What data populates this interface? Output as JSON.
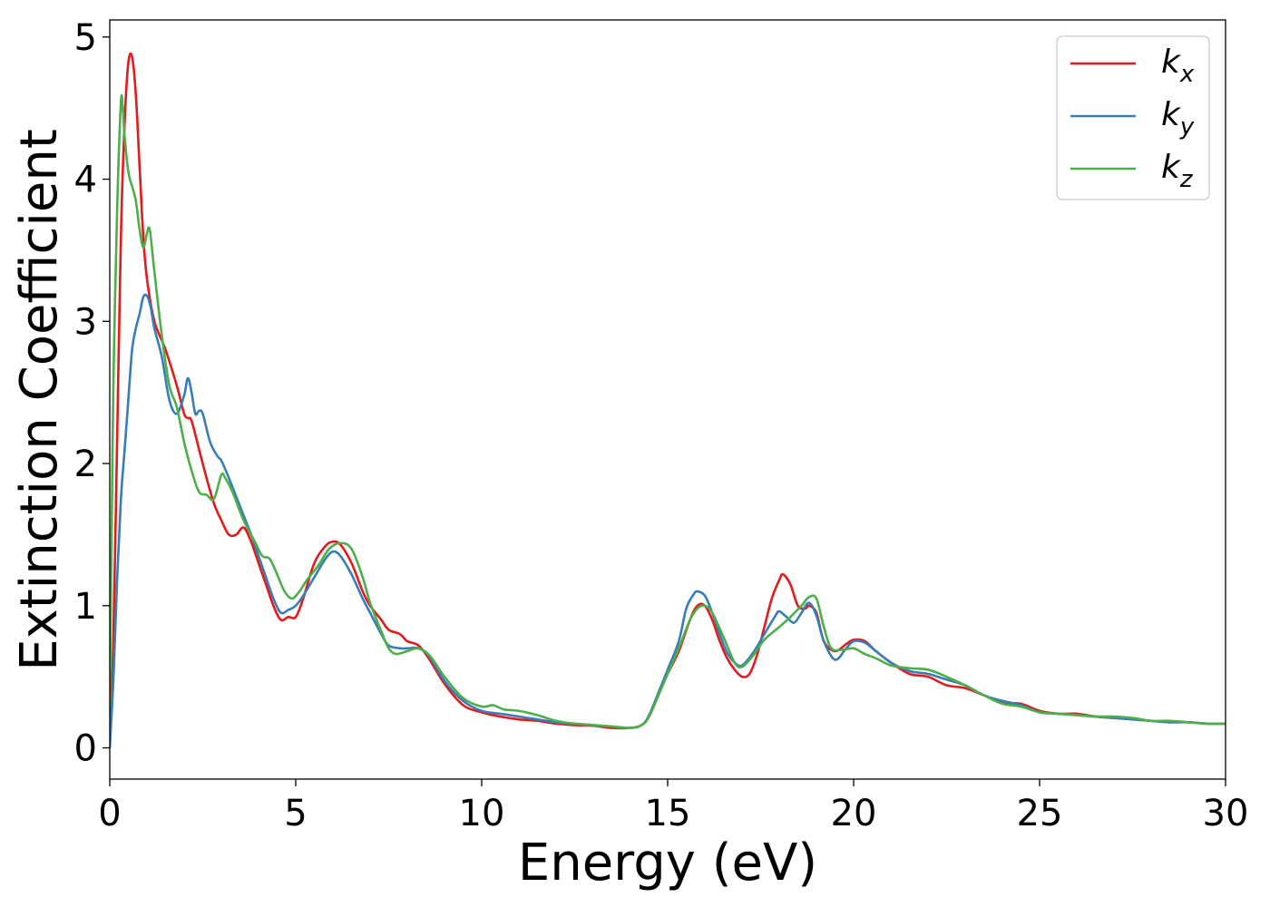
{
  "chart_data": {
    "type": "line",
    "title": "",
    "xlabel": "Energy (eV)",
    "ylabel": "Extinction Coefficient",
    "xlim": [
      0,
      30
    ],
    "ylim": [
      -0.22,
      5.12
    ],
    "xticks": [
      0,
      5,
      10,
      15,
      20,
      25,
      30
    ],
    "yticks": [
      0,
      1,
      2,
      3,
      4,
      5
    ],
    "grid": false,
    "legend_position": "top-right",
    "series": [
      {
        "name": "k",
        "sub": "x",
        "color": "#e41a1c",
        "points": [
          [
            0,
            0.0
          ],
          [
            0.1,
            0.8
          ],
          [
            0.2,
            2.2
          ],
          [
            0.3,
            3.6
          ],
          [
            0.4,
            4.4
          ],
          [
            0.5,
            4.82
          ],
          [
            0.6,
            4.86
          ],
          [
            0.7,
            4.6
          ],
          [
            0.8,
            4.1
          ],
          [
            0.9,
            3.6
          ],
          [
            1.0,
            3.3
          ],
          [
            1.2,
            3.0
          ],
          [
            1.5,
            2.8
          ],
          [
            1.8,
            2.55
          ],
          [
            2.0,
            2.35
          ],
          [
            2.1,
            2.32
          ],
          [
            2.2,
            2.3
          ],
          [
            2.4,
            2.1
          ],
          [
            2.6,
            1.9
          ],
          [
            2.8,
            1.72
          ],
          [
            3.0,
            1.6
          ],
          [
            3.2,
            1.5
          ],
          [
            3.4,
            1.5
          ],
          [
            3.6,
            1.55
          ],
          [
            3.8,
            1.45
          ],
          [
            4.0,
            1.3
          ],
          [
            4.2,
            1.15
          ],
          [
            4.4,
            1.0
          ],
          [
            4.6,
            0.9
          ],
          [
            4.8,
            0.92
          ],
          [
            5.0,
            0.92
          ],
          [
            5.2,
            1.05
          ],
          [
            5.5,
            1.3
          ],
          [
            5.8,
            1.42
          ],
          [
            6.0,
            1.45
          ],
          [
            6.2,
            1.43
          ],
          [
            6.5,
            1.3
          ],
          [
            6.8,
            1.1
          ],
          [
            7.0,
            1.0
          ],
          [
            7.3,
            0.9
          ],
          [
            7.5,
            0.83
          ],
          [
            7.8,
            0.8
          ],
          [
            8.0,
            0.75
          ],
          [
            8.3,
            0.72
          ],
          [
            8.6,
            0.62
          ],
          [
            9.0,
            0.45
          ],
          [
            9.5,
            0.3
          ],
          [
            10.0,
            0.25
          ],
          [
            10.5,
            0.22
          ],
          [
            11.0,
            0.2
          ],
          [
            11.5,
            0.19
          ],
          [
            12.0,
            0.17
          ],
          [
            12.5,
            0.16
          ],
          [
            13.0,
            0.155
          ],
          [
            13.5,
            0.14
          ],
          [
            14.0,
            0.14
          ],
          [
            14.3,
            0.16
          ],
          [
            14.5,
            0.22
          ],
          [
            14.8,
            0.4
          ],
          [
            15.0,
            0.52
          ],
          [
            15.3,
            0.68
          ],
          [
            15.6,
            0.9
          ],
          [
            15.8,
            1.0
          ],
          [
            16.0,
            1.0
          ],
          [
            16.2,
            0.9
          ],
          [
            16.4,
            0.75
          ],
          [
            16.6,
            0.63
          ],
          [
            16.8,
            0.55
          ],
          [
            17.0,
            0.5
          ],
          [
            17.2,
            0.52
          ],
          [
            17.4,
            0.65
          ],
          [
            17.6,
            0.85
          ],
          [
            17.8,
            1.05
          ],
          [
            18.0,
            1.18
          ],
          [
            18.1,
            1.22
          ],
          [
            18.3,
            1.15
          ],
          [
            18.5,
            1.0
          ],
          [
            18.7,
            0.98
          ],
          [
            18.8,
            1.0
          ],
          [
            19.0,
            0.95
          ],
          [
            19.2,
            0.75
          ],
          [
            19.5,
            0.68
          ],
          [
            19.8,
            0.73
          ],
          [
            20.0,
            0.76
          ],
          [
            20.3,
            0.75
          ],
          [
            20.6,
            0.68
          ],
          [
            21.0,
            0.6
          ],
          [
            21.5,
            0.52
          ],
          [
            22.0,
            0.5
          ],
          [
            22.5,
            0.44
          ],
          [
            23.0,
            0.42
          ],
          [
            23.5,
            0.37
          ],
          [
            24.0,
            0.32
          ],
          [
            24.5,
            0.31
          ],
          [
            25.0,
            0.26
          ],
          [
            25.5,
            0.24
          ],
          [
            26.0,
            0.24
          ],
          [
            26.5,
            0.22
          ],
          [
            27.0,
            0.21
          ],
          [
            27.5,
            0.2
          ],
          [
            28.0,
            0.19
          ],
          [
            28.5,
            0.18
          ],
          [
            29.0,
            0.18
          ],
          [
            29.5,
            0.17
          ],
          [
            30.0,
            0.17
          ]
        ]
      },
      {
        "name": "k",
        "sub": "y",
        "color": "#377eb8",
        "points": [
          [
            0,
            0.0
          ],
          [
            0.1,
            0.5
          ],
          [
            0.2,
            1.2
          ],
          [
            0.3,
            1.75
          ],
          [
            0.4,
            2.1
          ],
          [
            0.5,
            2.45
          ],
          [
            0.6,
            2.8
          ],
          [
            0.7,
            2.95
          ],
          [
            0.8,
            3.05
          ],
          [
            0.9,
            3.17
          ],
          [
            1.0,
            3.18
          ],
          [
            1.1,
            3.1
          ],
          [
            1.2,
            2.95
          ],
          [
            1.4,
            2.75
          ],
          [
            1.6,
            2.45
          ],
          [
            1.8,
            2.35
          ],
          [
            2.0,
            2.48
          ],
          [
            2.1,
            2.6
          ],
          [
            2.2,
            2.5
          ],
          [
            2.3,
            2.35
          ],
          [
            2.4,
            2.37
          ],
          [
            2.5,
            2.35
          ],
          [
            2.7,
            2.15
          ],
          [
            2.9,
            2.05
          ],
          [
            3.0,
            2.02
          ],
          [
            3.2,
            1.9
          ],
          [
            3.5,
            1.7
          ],
          [
            3.8,
            1.5
          ],
          [
            4.0,
            1.35
          ],
          [
            4.2,
            1.2
          ],
          [
            4.4,
            1.05
          ],
          [
            4.6,
            0.95
          ],
          [
            4.8,
            0.97
          ],
          [
            5.0,
            1.0
          ],
          [
            5.2,
            1.07
          ],
          [
            5.5,
            1.2
          ],
          [
            5.8,
            1.33
          ],
          [
            6.0,
            1.38
          ],
          [
            6.2,
            1.35
          ],
          [
            6.5,
            1.22
          ],
          [
            6.8,
            1.05
          ],
          [
            7.0,
            0.95
          ],
          [
            7.3,
            0.8
          ],
          [
            7.5,
            0.72
          ],
          [
            7.8,
            0.7
          ],
          [
            8.0,
            0.7
          ],
          [
            8.3,
            0.7
          ],
          [
            8.6,
            0.64
          ],
          [
            9.0,
            0.47
          ],
          [
            9.5,
            0.33
          ],
          [
            10.0,
            0.26
          ],
          [
            10.5,
            0.24
          ],
          [
            11.0,
            0.22
          ],
          [
            11.5,
            0.2
          ],
          [
            12.0,
            0.18
          ],
          [
            12.5,
            0.17
          ],
          [
            13.0,
            0.16
          ],
          [
            13.5,
            0.15
          ],
          [
            14.0,
            0.14
          ],
          [
            14.3,
            0.16
          ],
          [
            14.5,
            0.23
          ],
          [
            14.8,
            0.42
          ],
          [
            15.0,
            0.55
          ],
          [
            15.3,
            0.75
          ],
          [
            15.5,
            0.98
          ],
          [
            15.7,
            1.08
          ],
          [
            15.8,
            1.1
          ],
          [
            16.0,
            1.07
          ],
          [
            16.2,
            0.95
          ],
          [
            16.4,
            0.8
          ],
          [
            16.6,
            0.67
          ],
          [
            16.8,
            0.6
          ],
          [
            17.0,
            0.58
          ],
          [
            17.3,
            0.67
          ],
          [
            17.6,
            0.8
          ],
          [
            17.9,
            0.93
          ],
          [
            18.0,
            0.96
          ],
          [
            18.2,
            0.92
          ],
          [
            18.4,
            0.88
          ],
          [
            18.6,
            0.95
          ],
          [
            18.8,
            1.02
          ],
          [
            19.0,
            0.93
          ],
          [
            19.2,
            0.75
          ],
          [
            19.5,
            0.62
          ],
          [
            19.8,
            0.7
          ],
          [
            20.0,
            0.75
          ],
          [
            20.3,
            0.74
          ],
          [
            20.6,
            0.68
          ],
          [
            21.0,
            0.6
          ],
          [
            21.5,
            0.54
          ],
          [
            22.0,
            0.52
          ],
          [
            22.5,
            0.48
          ],
          [
            23.0,
            0.44
          ],
          [
            23.5,
            0.37
          ],
          [
            24.0,
            0.33
          ],
          [
            24.5,
            0.3
          ],
          [
            25.0,
            0.25
          ],
          [
            25.5,
            0.24
          ],
          [
            26.0,
            0.23
          ],
          [
            26.5,
            0.22
          ],
          [
            27.0,
            0.21
          ],
          [
            27.5,
            0.2
          ],
          [
            28.0,
            0.19
          ],
          [
            28.5,
            0.18
          ],
          [
            29.0,
            0.18
          ],
          [
            29.5,
            0.17
          ],
          [
            30.0,
            0.17
          ]
        ]
      },
      {
        "name": "k",
        "sub": "z",
        "color": "#4daf4a",
        "points": [
          [
            0,
            0.3
          ],
          [
            0.05,
            1.5
          ],
          [
            0.1,
            2.6
          ],
          [
            0.2,
            3.8
          ],
          [
            0.3,
            4.54
          ],
          [
            0.35,
            4.5
          ],
          [
            0.4,
            4.3
          ],
          [
            0.5,
            4.05
          ],
          [
            0.6,
            3.95
          ],
          [
            0.7,
            3.85
          ],
          [
            0.8,
            3.65
          ],
          [
            0.9,
            3.52
          ],
          [
            1.0,
            3.62
          ],
          [
            1.05,
            3.66
          ],
          [
            1.1,
            3.6
          ],
          [
            1.2,
            3.35
          ],
          [
            1.4,
            2.9
          ],
          [
            1.6,
            2.55
          ],
          [
            1.8,
            2.4
          ],
          [
            2.0,
            2.15
          ],
          [
            2.2,
            1.95
          ],
          [
            2.4,
            1.8
          ],
          [
            2.6,
            1.78
          ],
          [
            2.8,
            1.75
          ],
          [
            3.0,
            1.92
          ],
          [
            3.1,
            1.9
          ],
          [
            3.3,
            1.8
          ],
          [
            3.6,
            1.6
          ],
          [
            3.9,
            1.45
          ],
          [
            4.1,
            1.35
          ],
          [
            4.3,
            1.33
          ],
          [
            4.5,
            1.22
          ],
          [
            4.7,
            1.1
          ],
          [
            4.9,
            1.05
          ],
          [
            5.1,
            1.1
          ],
          [
            5.3,
            1.18
          ],
          [
            5.6,
            1.28
          ],
          [
            5.9,
            1.4
          ],
          [
            6.2,
            1.44
          ],
          [
            6.5,
            1.4
          ],
          [
            6.8,
            1.2
          ],
          [
            7.0,
            1.02
          ],
          [
            7.3,
            0.82
          ],
          [
            7.5,
            0.7
          ],
          [
            7.7,
            0.66
          ],
          [
            8.0,
            0.68
          ],
          [
            8.3,
            0.7
          ],
          [
            8.6,
            0.65
          ],
          [
            9.0,
            0.5
          ],
          [
            9.5,
            0.35
          ],
          [
            10.0,
            0.29
          ],
          [
            10.3,
            0.3
          ],
          [
            10.6,
            0.27
          ],
          [
            11.0,
            0.26
          ],
          [
            11.5,
            0.23
          ],
          [
            12.0,
            0.19
          ],
          [
            12.5,
            0.17
          ],
          [
            13.0,
            0.16
          ],
          [
            13.5,
            0.15
          ],
          [
            14.0,
            0.14
          ],
          [
            14.3,
            0.16
          ],
          [
            14.5,
            0.22
          ],
          [
            14.8,
            0.4
          ],
          [
            15.0,
            0.52
          ],
          [
            15.3,
            0.7
          ],
          [
            15.6,
            0.9
          ],
          [
            15.8,
            0.98
          ],
          [
            16.0,
            1.0
          ],
          [
            16.2,
            0.95
          ],
          [
            16.5,
            0.78
          ],
          [
            16.8,
            0.6
          ],
          [
            17.0,
            0.57
          ],
          [
            17.3,
            0.65
          ],
          [
            17.6,
            0.76
          ],
          [
            18.0,
            0.85
          ],
          [
            18.3,
            0.92
          ],
          [
            18.6,
            1.0
          ],
          [
            18.8,
            1.06
          ],
          [
            19.0,
            1.05
          ],
          [
            19.2,
            0.85
          ],
          [
            19.4,
            0.7
          ],
          [
            19.7,
            0.69
          ],
          [
            20.0,
            0.7
          ],
          [
            20.3,
            0.66
          ],
          [
            20.6,
            0.63
          ],
          [
            21.0,
            0.58
          ],
          [
            21.5,
            0.56
          ],
          [
            22.0,
            0.55
          ],
          [
            22.5,
            0.5
          ],
          [
            23.0,
            0.44
          ],
          [
            23.5,
            0.37
          ],
          [
            24.0,
            0.31
          ],
          [
            24.5,
            0.29
          ],
          [
            25.0,
            0.25
          ],
          [
            25.5,
            0.24
          ],
          [
            26.0,
            0.23
          ],
          [
            26.5,
            0.22
          ],
          [
            27.0,
            0.22
          ],
          [
            27.5,
            0.21
          ],
          [
            28.0,
            0.19
          ],
          [
            28.5,
            0.19
          ],
          [
            29.0,
            0.18
          ],
          [
            29.5,
            0.17
          ],
          [
            30.0,
            0.17
          ]
        ]
      }
    ]
  }
}
